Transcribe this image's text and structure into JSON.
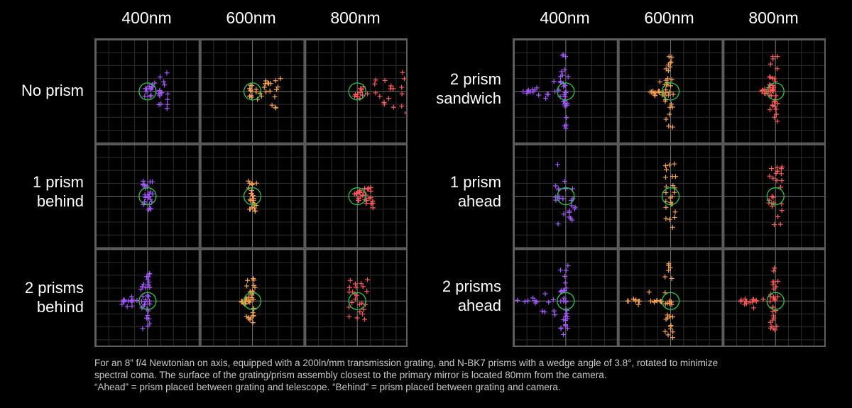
{
  "colors": {
    "background": "#000000",
    "cell_border": "#5e5e5e",
    "grid": "#2c2c2c",
    "crosshair": "#6e6e6e",
    "airy_circle": "#23c94a",
    "wavelength_400nm": "#a557ff",
    "wavelength_600nm": "#f5a04c",
    "wavelength_800nm": "#ff5858"
  },
  "left_panel": {
    "column_headers": [
      "400nm",
      "600nm",
      "800nm"
    ],
    "rows": [
      {
        "line1": "No prism",
        "line2": ""
      },
      {
        "line1": "1 prism",
        "line2": "behind"
      },
      {
        "line1": "2 prisms",
        "line2": "behind"
      }
    ]
  },
  "right_panel": {
    "column_headers": [
      "400nm",
      "600nm",
      "800nm"
    ],
    "rows": [
      {
        "line1": "2 prism",
        "line2": "sandwich"
      },
      {
        "line1": "1 prism",
        "line2": "ahead"
      },
      {
        "line1": "2 prisms",
        "line2": "ahead"
      }
    ]
  },
  "caption": {
    "line1": "For an 8” f/4 Newtonian on axis, equipped with a 200ln/mm transmission grating, and N-BK7 prisms with a wedge angle of 3.8°, rotated to minimize",
    "line2": "spectral coma. The surface of the grating/prism assembly closest to the primary mirror is located 80mm from the camera.",
    "line3": "“Ahead” = prism placed between grating and telescope. “Behind” = prism placed between grating and camera."
  },
  "spot_diagrams": {
    "marker": "plus",
    "wavelengths": [
      "400nm",
      "600nm",
      "800nm"
    ],
    "left": [
      [
        {
          "shape": "comet",
          "direction": "right",
          "width": 0.45,
          "height": 0.45
        },
        {
          "shape": "comet",
          "direction": "right",
          "width": 0.55,
          "height": 0.45
        },
        {
          "shape": "comet",
          "direction": "right",
          "width": 1.0,
          "height": 0.45
        }
      ],
      [
        {
          "shape": "ellipse",
          "direction": "none",
          "width": 0.1,
          "height": 0.3
        },
        {
          "shape": "ellipse",
          "direction": "none",
          "width": 0.08,
          "height": 0.3
        },
        {
          "shape": "comet",
          "direction": "right",
          "width": 0.35,
          "height": 0.25
        }
      ],
      [
        {
          "shape": "fan",
          "direction": "left",
          "width": 0.65,
          "height": 0.6
        },
        {
          "shape": "fan",
          "direction": "left",
          "width": 0.25,
          "height": 0.45
        },
        {
          "shape": "ellipse",
          "direction": "none",
          "width": 0.2,
          "height": 0.45
        }
      ]
    ],
    "right": [
      [
        {
          "shape": "fan",
          "direction": "left",
          "width": 0.85,
          "height": 0.75
        },
        {
          "shape": "fan",
          "direction": "left",
          "width": 0.45,
          "height": 0.7
        },
        {
          "shape": "fan",
          "direction": "left",
          "width": 0.3,
          "height": 0.7
        }
      ],
      [
        {
          "shape": "ellipse",
          "direction": "none",
          "width": 0.2,
          "height": 0.65
        },
        {
          "shape": "ellipse",
          "direction": "none",
          "width": 0.1,
          "height": 0.65
        },
        {
          "shape": "ellipse",
          "direction": "none",
          "width": 0.15,
          "height": 0.6
        }
      ],
      [
        {
          "shape": "fan",
          "direction": "left",
          "width": 1.0,
          "height": 0.75
        },
        {
          "shape": "fan",
          "direction": "left",
          "width": 0.85,
          "height": 0.75
        },
        {
          "shape": "fan",
          "direction": "left",
          "width": 0.75,
          "height": 0.65
        }
      ]
    ]
  }
}
